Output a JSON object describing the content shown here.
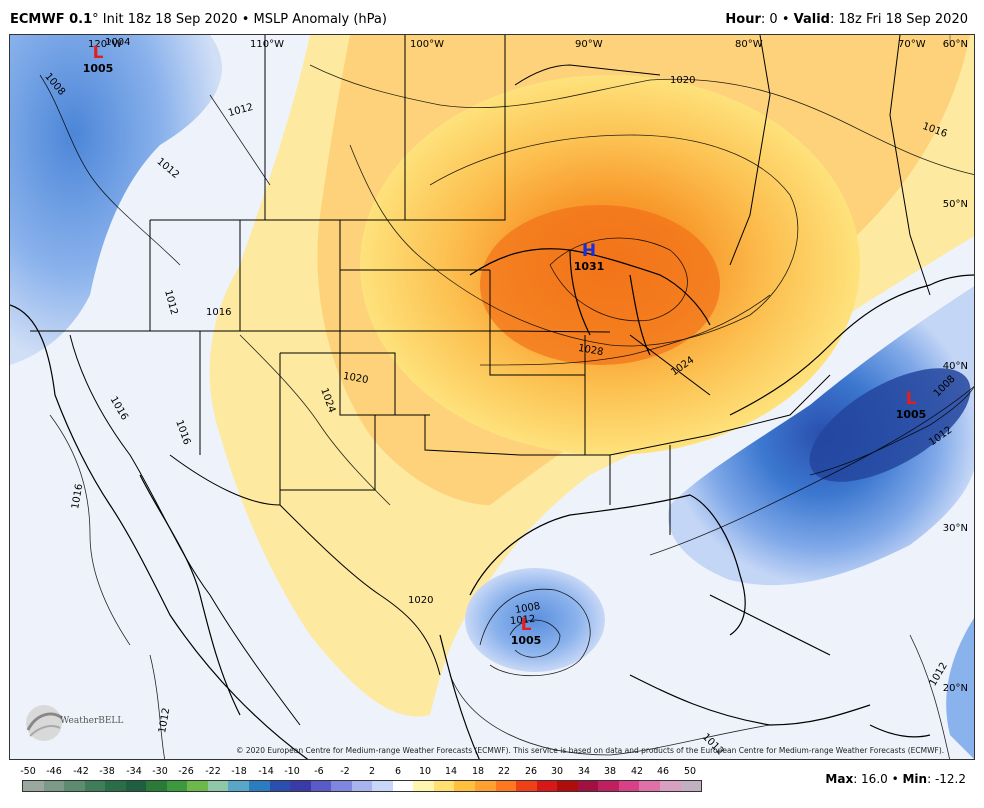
{
  "header": {
    "model": "ECMWF 0.1",
    "degree": "°",
    "init_text": " Init 18z 18 Sep 2020 • MSLP Anomaly (hPa)",
    "hour_label": "Hour",
    "hour_value": ": 0 • ",
    "valid_label": "Valid",
    "valid_value": ": 18z Fri 18 Sep 2020"
  },
  "map": {
    "longitude_labels": [
      "120°W",
      "110°W",
      "100°W",
      "90°W",
      "80°W",
      "70°W"
    ],
    "latitude_labels": [
      "60°N",
      "50°N",
      "40°N",
      "30°N",
      "20°N"
    ],
    "pressure_centers": [
      {
        "type": "L",
        "value": "1005",
        "color": "#e02020"
      },
      {
        "type": "H",
        "value": "1031",
        "color": "#1a2fd6"
      },
      {
        "type": "L",
        "value": "1005",
        "color": "#e02020"
      },
      {
        "type": "L",
        "value": "1005",
        "color": "#e02020"
      }
    ],
    "isobar_labels": [
      "1004",
      "1008",
      "1012",
      "1012",
      "1012",
      "1016",
      "1016",
      "1016",
      "1016",
      "1020",
      "1020",
      "1020",
      "1024",
      "1028",
      "1008",
      "1012",
      "1008",
      "1012",
      "1012",
      "1012",
      "1016",
      "1024",
      "1012"
    ],
    "copyright": "© 2020 European Centre for Medium-range Weather Forecasts (ECMWF). This service is based on data and products of the European Centre for Medium-range Weather Forecasts (ECMWF).",
    "logo_text": "WeatherBELL"
  },
  "colorbar": {
    "ticks": [
      "-50",
      "-46",
      "-42",
      "-38",
      "-34",
      "-30",
      "-26",
      "-22",
      "-18",
      "-14",
      "-10",
      "-6",
      "-2",
      "2",
      "6",
      "10",
      "14",
      "18",
      "22",
      "26",
      "30",
      "34",
      "38",
      "42",
      "46",
      "50"
    ],
    "colors": [
      "#9aa8a0",
      "#7d9a88",
      "#5e8c70",
      "#3f7e58",
      "#2a6e48",
      "#1f5e40",
      "#2a7a38",
      "#3c9a3c",
      "#6cb84a",
      "#8fc8a8",
      "#5aa6c8",
      "#2c7cc0",
      "#2a4fae",
      "#3a3aa8",
      "#5a5ac8",
      "#7f86e0",
      "#a8b4f0",
      "#c8d6fa",
      "#ffffff",
      "#fff7b0",
      "#ffe070",
      "#ffc040",
      "#ffa030",
      "#ff7820",
      "#f04018",
      "#d81818",
      "#b00c0c",
      "#a01040",
      "#c02060",
      "#d84088",
      "#e070a8",
      "#d8a0c0",
      "#c0b0c0"
    ]
  },
  "stats": {
    "max_label": "Max",
    "max_value": ": 16.0 • ",
    "min_label": "Min",
    "min_value": ": -12.2"
  }
}
